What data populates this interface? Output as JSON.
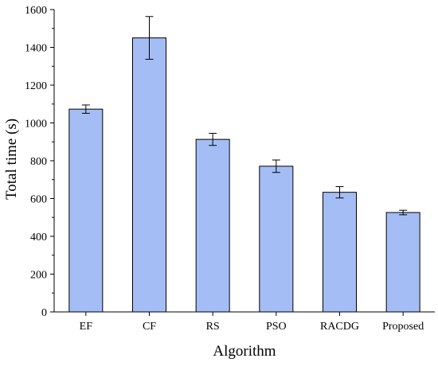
{
  "chart_data": {
    "type": "bar",
    "title": "",
    "xlabel": "Algorithm",
    "ylabel": "Total time (s)",
    "categories": [
      "EF",
      "CF",
      "RS",
      "PSO",
      "RACDG",
      "Proposed"
    ],
    "values": [
      1073,
      1450,
      913,
      771,
      633,
      526
    ],
    "errors": [
      22,
      113,
      32,
      33,
      30,
      12
    ],
    "ylim": [
      0,
      1600
    ],
    "yticks": [
      0,
      200,
      400,
      600,
      800,
      1000,
      1200,
      1400,
      1600
    ],
    "grid": false,
    "legend": "none",
    "colors": {
      "bar_fill": "#a5bdf5",
      "bar_stroke": "#000000",
      "axis": "#000000"
    }
  }
}
